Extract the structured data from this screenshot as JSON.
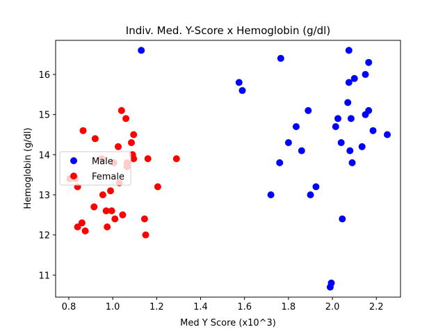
{
  "chart_data": {
    "type": "scatter",
    "title": "Indiv. Med. Y-Score x Hemoglobin (g/dl)",
    "xlabel": "Med Y Score (x10^3)",
    "ylabel": "Hemoglobin (g/dl)",
    "xlim": [
      0.74,
      2.31
    ],
    "ylim": [
      10.45,
      16.85
    ],
    "xticks": [
      0.8,
      1.0,
      1.2,
      1.4,
      1.6,
      1.8,
      2.0,
      2.2
    ],
    "xtick_labels": [
      "0.8",
      "1.0",
      "1.2",
      "1.4",
      "1.6",
      "1.8",
      "2.0",
      "2.2"
    ],
    "yticks": [
      11,
      12,
      13,
      14,
      15,
      16
    ],
    "ytick_labels": [
      "11",
      "12",
      "13",
      "14",
      "15",
      "16"
    ],
    "grid": false,
    "legend": {
      "placement": "center-left"
    },
    "series": [
      {
        "name": "Male",
        "color": "#0000ff",
        "x": [
          1.13,
          1.575,
          1.59,
          1.765,
          1.72,
          1.76,
          1.8,
          1.835,
          1.86,
          1.89,
          1.9,
          1.925,
          1.99,
          1.995,
          2.015,
          2.025,
          2.04,
          2.045,
          2.07,
          2.075,
          2.075,
          2.08,
          2.085,
          2.09,
          2.1,
          2.135,
          2.15,
          2.15,
          2.165,
          2.165,
          2.185,
          2.25
        ],
        "y": [
          16.6,
          15.8,
          15.6,
          16.4,
          13.0,
          13.8,
          14.3,
          14.7,
          14.1,
          15.1,
          13.0,
          13.2,
          10.7,
          10.8,
          14.7,
          14.9,
          14.3,
          12.4,
          15.3,
          16.6,
          15.8,
          14.1,
          14.9,
          13.8,
          15.9,
          14.2,
          16.0,
          15.0,
          16.3,
          15.1,
          14.6,
          14.5
        ]
      },
      {
        "name": "Female",
        "color": "#ff0000",
        "x": [
          0.805,
          0.83,
          0.84,
          0.84,
          0.86,
          0.865,
          0.875,
          0.915,
          0.92,
          0.95,
          0.955,
          0.97,
          0.975,
          0.99,
          0.995,
          1.005,
          1.01,
          1.025,
          1.03,
          1.04,
          1.045,
          1.06,
          1.065,
          1.065,
          1.085,
          1.09,
          1.095,
          1.095,
          1.145,
          1.15,
          1.16,
          1.205,
          1.29
        ],
        "y": [
          13.4,
          13.4,
          13.2,
          12.2,
          12.3,
          14.6,
          12.1,
          12.7,
          14.4,
          13.9,
          13.0,
          12.6,
          12.2,
          13.1,
          12.6,
          13.8,
          12.4,
          14.2,
          13.3,
          15.1,
          12.5,
          14.9,
          13.8,
          13.7,
          14.3,
          14.0,
          14.5,
          13.9,
          12.4,
          12.0,
          13.9,
          13.2,
          13.9
        ]
      }
    ]
  }
}
